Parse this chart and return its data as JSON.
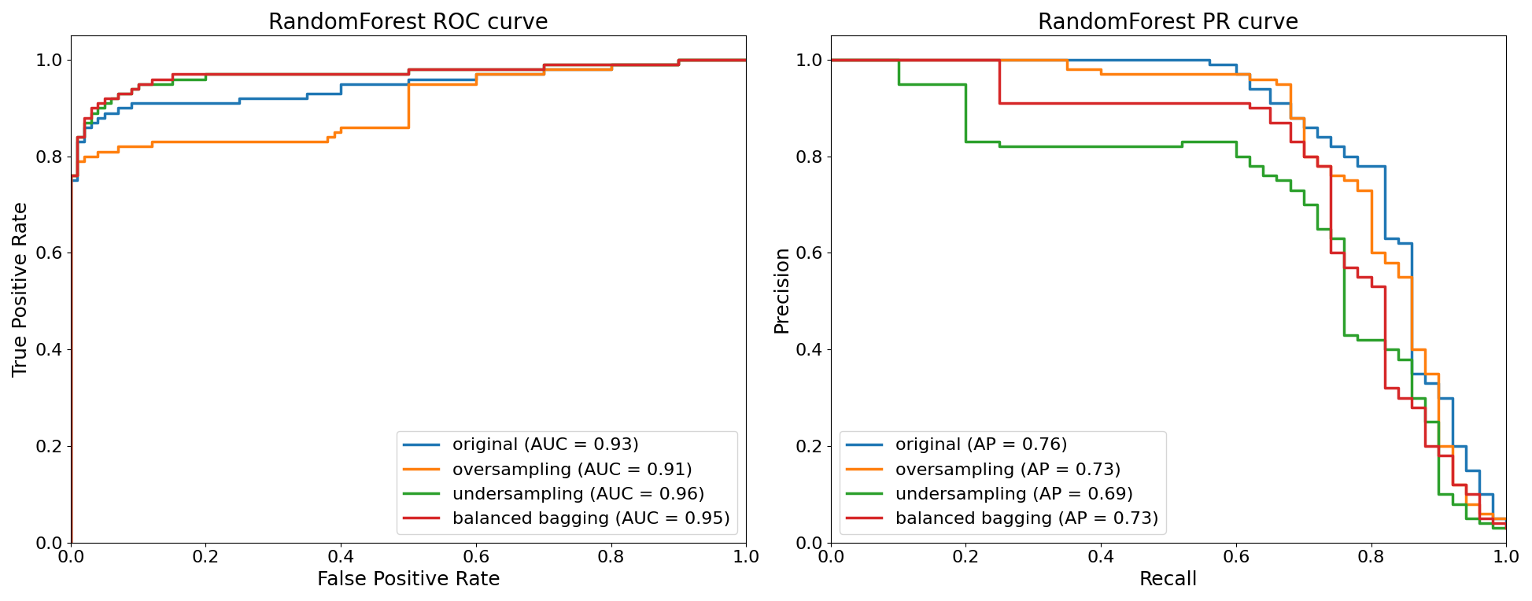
{
  "roc_title": "RandomForest ROC curve",
  "pr_title": "RandomForest PR curve",
  "roc_xlabel": "False Positive Rate",
  "roc_ylabel": "True Positive Rate",
  "pr_xlabel": "Recall",
  "pr_ylabel": "Precision",
  "colors": {
    "original": "#1f77b4",
    "oversampling": "#ff7f0e",
    "undersampling": "#2ca02c",
    "balanced_bagging": "#d62728"
  },
  "roc_legend": [
    "original (AUC = 0.93)",
    "oversampling (AUC = 0.91)",
    "undersampling (AUC = 0.96)",
    "balanced bagging (AUC = 0.95)"
  ],
  "pr_legend": [
    "original (AP = 0.76)",
    "oversampling (AP = 0.73)",
    "undersampling (AP = 0.69)",
    "balanced bagging (AP = 0.73)"
  ],
  "roc_original_fpr": [
    0.0,
    0.0,
    0.01,
    0.02,
    0.03,
    0.04,
    0.05,
    0.06,
    0.07,
    0.08,
    0.09,
    0.1,
    0.12,
    0.14,
    0.16,
    0.18,
    0.2,
    0.25,
    0.35,
    0.4,
    0.5,
    0.6,
    0.7,
    0.8,
    0.9,
    1.0
  ],
  "roc_original_tpr": [
    0.0,
    0.75,
    0.83,
    0.86,
    0.87,
    0.88,
    0.89,
    0.89,
    0.9,
    0.9,
    0.91,
    0.91,
    0.91,
    0.91,
    0.91,
    0.91,
    0.91,
    0.92,
    0.93,
    0.95,
    0.96,
    0.97,
    0.98,
    0.99,
    1.0,
    1.0
  ],
  "roc_oversampling_fpr": [
    0.0,
    0.0,
    0.01,
    0.02,
    0.03,
    0.04,
    0.05,
    0.06,
    0.07,
    0.08,
    0.1,
    0.12,
    0.15,
    0.2,
    0.25,
    0.3,
    0.35,
    0.36,
    0.37,
    0.38,
    0.39,
    0.4,
    0.5,
    0.6,
    0.7,
    0.8,
    0.9,
    1.0
  ],
  "roc_oversampling_tpr": [
    0.0,
    0.76,
    0.79,
    0.8,
    0.8,
    0.81,
    0.81,
    0.81,
    0.82,
    0.82,
    0.82,
    0.83,
    0.83,
    0.83,
    0.83,
    0.83,
    0.83,
    0.83,
    0.83,
    0.84,
    0.85,
    0.86,
    0.95,
    0.97,
    0.98,
    0.99,
    1.0,
    1.0
  ],
  "roc_undersampling_fpr": [
    0.0,
    0.0,
    0.01,
    0.02,
    0.03,
    0.04,
    0.05,
    0.06,
    0.07,
    0.08,
    0.09,
    0.1,
    0.12,
    0.15,
    0.2,
    0.3,
    0.5,
    0.7,
    0.9,
    1.0
  ],
  "roc_undersampling_tpr": [
    0.0,
    0.76,
    0.84,
    0.87,
    0.89,
    0.9,
    0.91,
    0.92,
    0.93,
    0.93,
    0.94,
    0.95,
    0.95,
    0.96,
    0.97,
    0.97,
    0.98,
    0.99,
    1.0,
    1.0
  ],
  "roc_balanced_fpr": [
    0.0,
    0.0,
    0.01,
    0.02,
    0.03,
    0.04,
    0.05,
    0.06,
    0.07,
    0.08,
    0.09,
    0.1,
    0.12,
    0.15,
    0.2,
    0.3,
    0.5,
    0.7,
    0.8,
    0.9,
    1.0
  ],
  "roc_balanced_tpr": [
    0.0,
    0.76,
    0.84,
    0.88,
    0.9,
    0.91,
    0.92,
    0.92,
    0.93,
    0.93,
    0.94,
    0.95,
    0.96,
    0.97,
    0.97,
    0.97,
    0.98,
    0.99,
    0.99,
    1.0,
    1.0
  ],
  "pr_original_recall": [
    0.0,
    0.35,
    0.4,
    0.42,
    0.44,
    0.46,
    0.48,
    0.5,
    0.52,
    0.54,
    0.56,
    0.58,
    0.6,
    0.62,
    0.65,
    0.68,
    0.7,
    0.72,
    0.74,
    0.76,
    0.78,
    0.8,
    0.82,
    0.84,
    0.86,
    0.88,
    0.9,
    0.92,
    0.94,
    0.96,
    0.98,
    1.0
  ],
  "pr_original_precision": [
    1.0,
    1.0,
    1.0,
    1.0,
    1.0,
    1.0,
    1.0,
    1.0,
    1.0,
    1.0,
    0.99,
    0.99,
    0.97,
    0.94,
    0.91,
    0.88,
    0.86,
    0.84,
    0.82,
    0.8,
    0.78,
    0.78,
    0.63,
    0.62,
    0.35,
    0.33,
    0.3,
    0.2,
    0.15,
    0.1,
    0.05,
    0.03
  ],
  "pr_oversampling_recall": [
    0.0,
    0.35,
    0.4,
    0.42,
    0.44,
    0.46,
    0.48,
    0.5,
    0.52,
    0.54,
    0.56,
    0.58,
    0.6,
    0.62,
    0.64,
    0.66,
    0.68,
    0.7,
    0.72,
    0.74,
    0.76,
    0.78,
    0.8,
    0.82,
    0.84,
    0.86,
    0.88,
    0.9,
    0.92,
    0.94,
    0.96,
    0.98,
    1.0
  ],
  "pr_oversampling_precision": [
    1.0,
    0.98,
    0.97,
    0.97,
    0.97,
    0.97,
    0.97,
    0.97,
    0.97,
    0.97,
    0.97,
    0.97,
    0.97,
    0.96,
    0.96,
    0.95,
    0.88,
    0.8,
    0.78,
    0.76,
    0.75,
    0.73,
    0.6,
    0.58,
    0.55,
    0.4,
    0.35,
    0.2,
    0.12,
    0.08,
    0.06,
    0.05,
    0.05
  ],
  "pr_undersampling_recall": [
    0.0,
    0.1,
    0.15,
    0.2,
    0.25,
    0.3,
    0.35,
    0.4,
    0.45,
    0.48,
    0.5,
    0.52,
    0.54,
    0.56,
    0.58,
    0.6,
    0.62,
    0.64,
    0.66,
    0.68,
    0.7,
    0.72,
    0.74,
    0.76,
    0.78,
    0.8,
    0.82,
    0.84,
    0.86,
    0.88,
    0.9,
    0.92,
    0.94,
    0.96,
    0.98,
    1.0
  ],
  "pr_undersampling_precision": [
    1.0,
    0.95,
    0.95,
    0.83,
    0.82,
    0.82,
    0.82,
    0.82,
    0.82,
    0.82,
    0.82,
    0.83,
    0.83,
    0.83,
    0.83,
    0.8,
    0.78,
    0.76,
    0.75,
    0.73,
    0.7,
    0.65,
    0.63,
    0.43,
    0.42,
    0.42,
    0.4,
    0.38,
    0.3,
    0.25,
    0.1,
    0.08,
    0.05,
    0.04,
    0.03,
    0.03
  ],
  "pr_balanced_recall": [
    0.0,
    0.2,
    0.25,
    0.28,
    0.3,
    0.32,
    0.35,
    0.38,
    0.4,
    0.43,
    0.45,
    0.48,
    0.5,
    0.52,
    0.55,
    0.58,
    0.6,
    0.62,
    0.65,
    0.68,
    0.7,
    0.72,
    0.74,
    0.76,
    0.78,
    0.8,
    0.82,
    0.84,
    0.86,
    0.88,
    0.9,
    0.92,
    0.94,
    0.96,
    0.98,
    1.0
  ],
  "pr_balanced_precision": [
    1.0,
    1.0,
    0.91,
    0.91,
    0.91,
    0.91,
    0.91,
    0.91,
    0.91,
    0.91,
    0.91,
    0.91,
    0.91,
    0.91,
    0.91,
    0.91,
    0.91,
    0.9,
    0.87,
    0.83,
    0.8,
    0.78,
    0.6,
    0.57,
    0.55,
    0.53,
    0.32,
    0.3,
    0.28,
    0.2,
    0.18,
    0.12,
    0.1,
    0.05,
    0.04,
    0.03
  ],
  "linewidth": 2.5,
  "figsize": [
    19.47,
    7.64
  ],
  "dpi": 100,
  "legend_fontsize": 16,
  "title_fontsize": 20,
  "label_fontsize": 18,
  "tick_fontsize": 16
}
